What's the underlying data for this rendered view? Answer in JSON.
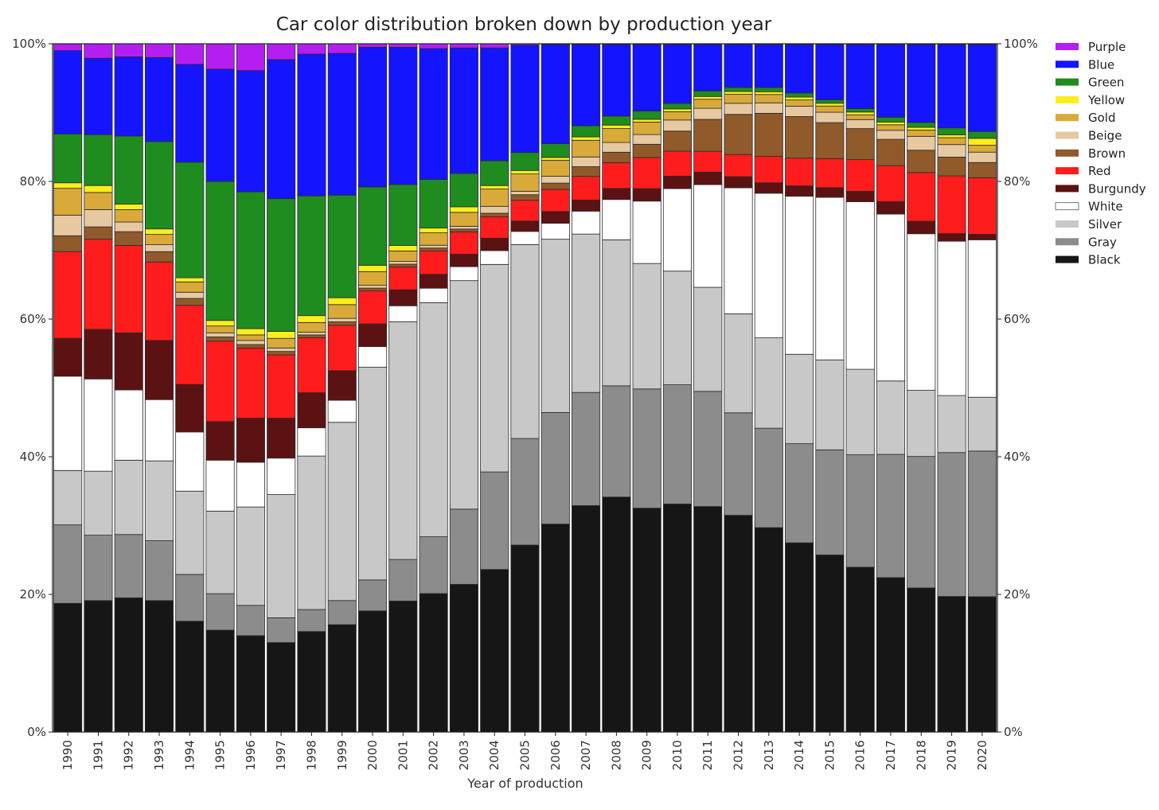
{
  "chart_data": {
    "type": "bar",
    "stacked": true,
    "title": "Car color distribution broken down by production year",
    "xlabel": "Year of production",
    "ylabel": "",
    "ylim": [
      0,
      100
    ],
    "yticks": [
      0,
      20,
      40,
      60,
      80,
      100
    ],
    "ytick_suffix": "%",
    "legend_position": "right",
    "categories": [
      "1990",
      "1991",
      "1992",
      "1993",
      "1994",
      "1995",
      "1996",
      "1997",
      "1998",
      "1999",
      "2000",
      "2001",
      "2002",
      "2003",
      "2004",
      "2005",
      "2006",
      "2007",
      "2008",
      "2009",
      "2010",
      "2011",
      "2012",
      "2013",
      "2014",
      "2015",
      "2016",
      "2017",
      "2018",
      "2019",
      "2020"
    ],
    "series": [
      {
        "name": "Black",
        "color": "#161616",
        "values": [
          18.7,
          19.1,
          19.5,
          19.1,
          16.1,
          14.8,
          14.0,
          13.0,
          14.6,
          15.6,
          17.6,
          18.9,
          20.0,
          21.2,
          23.5,
          27.0,
          30.0,
          32.6,
          33.8,
          32.3,
          32.9,
          32.5,
          31.3,
          29.4,
          27.3,
          25.6,
          23.9,
          22.3,
          20.7,
          19.5,
          19.6
        ]
      },
      {
        "name": "Gray",
        "color": "#8c8c8c",
        "values": [
          11.4,
          9.5,
          9.2,
          8.7,
          6.8,
          5.3,
          4.4,
          3.6,
          3.2,
          3.5,
          4.5,
          6.0,
          8.2,
          10.8,
          14.1,
          15.4,
          16.1,
          16.3,
          16.0,
          17.2,
          17.2,
          16.6,
          14.8,
          14.3,
          14.3,
          15.2,
          16.3,
          17.8,
          18.9,
          20.7,
          21.1
        ]
      },
      {
        "name": "Silver",
        "color": "#c8c8c8",
        "values": [
          7.9,
          9.3,
          10.8,
          11.6,
          12.1,
          12.0,
          14.3,
          17.9,
          22.3,
          25.9,
          30.9,
          34.3,
          33.8,
          32.8,
          30.0,
          28.0,
          25.0,
          22.8,
          21.0,
          18.1,
          16.4,
          15.0,
          14.3,
          13.0,
          12.9,
          13.0,
          12.4,
          10.6,
          9.5,
          8.2,
          7.8
        ]
      },
      {
        "name": "White",
        "color": "#ffffff",
        "values": [
          13.7,
          13.4,
          10.2,
          8.9,
          8.6,
          7.4,
          6.5,
          5.3,
          4.1,
          3.2,
          3.0,
          2.3,
          2.1,
          2.0,
          2.0,
          1.9,
          2.3,
          3.3,
          5.8,
          9.0,
          11.9,
          14.8,
          18.2,
          20.8,
          22.8,
          23.5,
          24.3,
          24.1,
          22.5,
          22.2,
          22.8
        ]
      },
      {
        "name": "Burgundy",
        "color": "#5c1212",
        "values": [
          5.5,
          7.2,
          8.3,
          8.6,
          6.9,
          5.6,
          6.4,
          5.8,
          5.1,
          4.3,
          3.3,
          2.3,
          2.0,
          1.8,
          1.8,
          1.5,
          1.7,
          1.6,
          1.6,
          1.8,
          1.8,
          1.8,
          1.6,
          1.5,
          1.5,
          1.4,
          1.5,
          1.8,
          1.8,
          1.1,
          0.8
        ]
      },
      {
        "name": "Red",
        "color": "#ff1c1c",
        "values": [
          12.6,
          13.1,
          12.7,
          11.4,
          11.5,
          11.7,
          10.2,
          9.2,
          8.0,
          6.6,
          4.8,
          3.3,
          3.4,
          3.2,
          3.1,
          3.0,
          3.2,
          3.4,
          3.7,
          4.5,
          3.6,
          3.0,
          3.2,
          3.8,
          4.0,
          4.2,
          4.6,
          5.2,
          7.0,
          8.3,
          8.2
        ]
      },
      {
        "name": "Brown",
        "color": "#915a2b",
        "values": [
          2.3,
          1.8,
          2.0,
          1.5,
          1.0,
          0.6,
          0.5,
          0.5,
          0.4,
          0.5,
          0.4,
          0.4,
          0.4,
          0.4,
          0.5,
          0.8,
          0.9,
          1.4,
          1.5,
          1.9,
          2.9,
          4.6,
          5.8,
          6.2,
          6.0,
          5.2,
          4.5,
          3.8,
          3.2,
          2.7,
          2.2
        ]
      },
      {
        "name": "Beige",
        "color": "#e6c9a1",
        "values": [
          3.0,
          2.5,
          1.4,
          1.0,
          0.9,
          0.6,
          0.6,
          0.5,
          0.4,
          0.5,
          0.4,
          0.4,
          0.4,
          0.4,
          1.0,
          0.5,
          1.0,
          1.4,
          1.4,
          1.4,
          1.6,
          1.6,
          1.6,
          1.5,
          1.5,
          1.5,
          1.3,
          1.3,
          2.0,
          1.8,
          1.5
        ]
      },
      {
        "name": "Gold",
        "color": "#d9a93a",
        "values": [
          3.9,
          2.5,
          1.8,
          1.5,
          1.5,
          1.0,
          0.8,
          1.4,
          1.4,
          2.0,
          2.0,
          1.5,
          1.8,
          2.0,
          2.5,
          2.5,
          2.3,
          2.4,
          2.0,
          1.8,
          1.2,
          1.3,
          1.3,
          1.2,
          0.9,
          0.9,
          0.7,
          0.8,
          0.9,
          1.0,
          1.0
        ]
      },
      {
        "name": "Yellow",
        "color": "#ffee1c",
        "values": [
          0.8,
          1.0,
          0.8,
          0.8,
          0.6,
          0.8,
          0.9,
          1.0,
          1.0,
          1.0,
          0.9,
          0.8,
          0.7,
          0.8,
          0.5,
          0.5,
          0.4,
          0.5,
          0.5,
          0.4,
          0.4,
          0.4,
          0.4,
          0.4,
          0.4,
          0.4,
          0.4,
          0.4,
          0.4,
          0.4,
          1.0
        ]
      },
      {
        "name": "Green",
        "color": "#1e8c1e",
        "values": [
          7.1,
          7.4,
          9.9,
          12.7,
          16.8,
          20.2,
          19.9,
          19.3,
          17.4,
          14.9,
          11.4,
          8.8,
          7.0,
          4.8,
          3.6,
          2.6,
          2.0,
          1.6,
          1.3,
          1.2,
          0.8,
          0.8,
          0.6,
          0.6,
          0.6,
          0.5,
          0.5,
          0.7,
          0.7,
          1.0,
          1.0
        ]
      },
      {
        "name": "Blue",
        "color": "#1414ff",
        "values": [
          12.1,
          11.1,
          11.5,
          12.2,
          14.2,
          16.3,
          17.6,
          20.2,
          20.6,
          20.6,
          20.3,
          19.8,
          18.9,
          18.0,
          16.3,
          15.5,
          14.3,
          11.7,
          10.3,
          9.6,
          8.5,
          6.7,
          6.2,
          6.2,
          7.0,
          8.0,
          9.3,
          10.5,
          11.2,
          12.0,
          12.6
        ]
      },
      {
        "name": "Purple",
        "color": "#b41ef0",
        "values": [
          1.0,
          2.1,
          1.9,
          2.0,
          3.0,
          3.7,
          3.9,
          2.3,
          1.5,
          1.4,
          0.5,
          0.5,
          0.7,
          0.6,
          0.6,
          0.2,
          0.1,
          0.1,
          0.1,
          0.1,
          0.1,
          0.1,
          0.1,
          0.1,
          0.1,
          0.1,
          0.1,
          0.1,
          0.1,
          0.1,
          0.1
        ]
      }
    ]
  }
}
